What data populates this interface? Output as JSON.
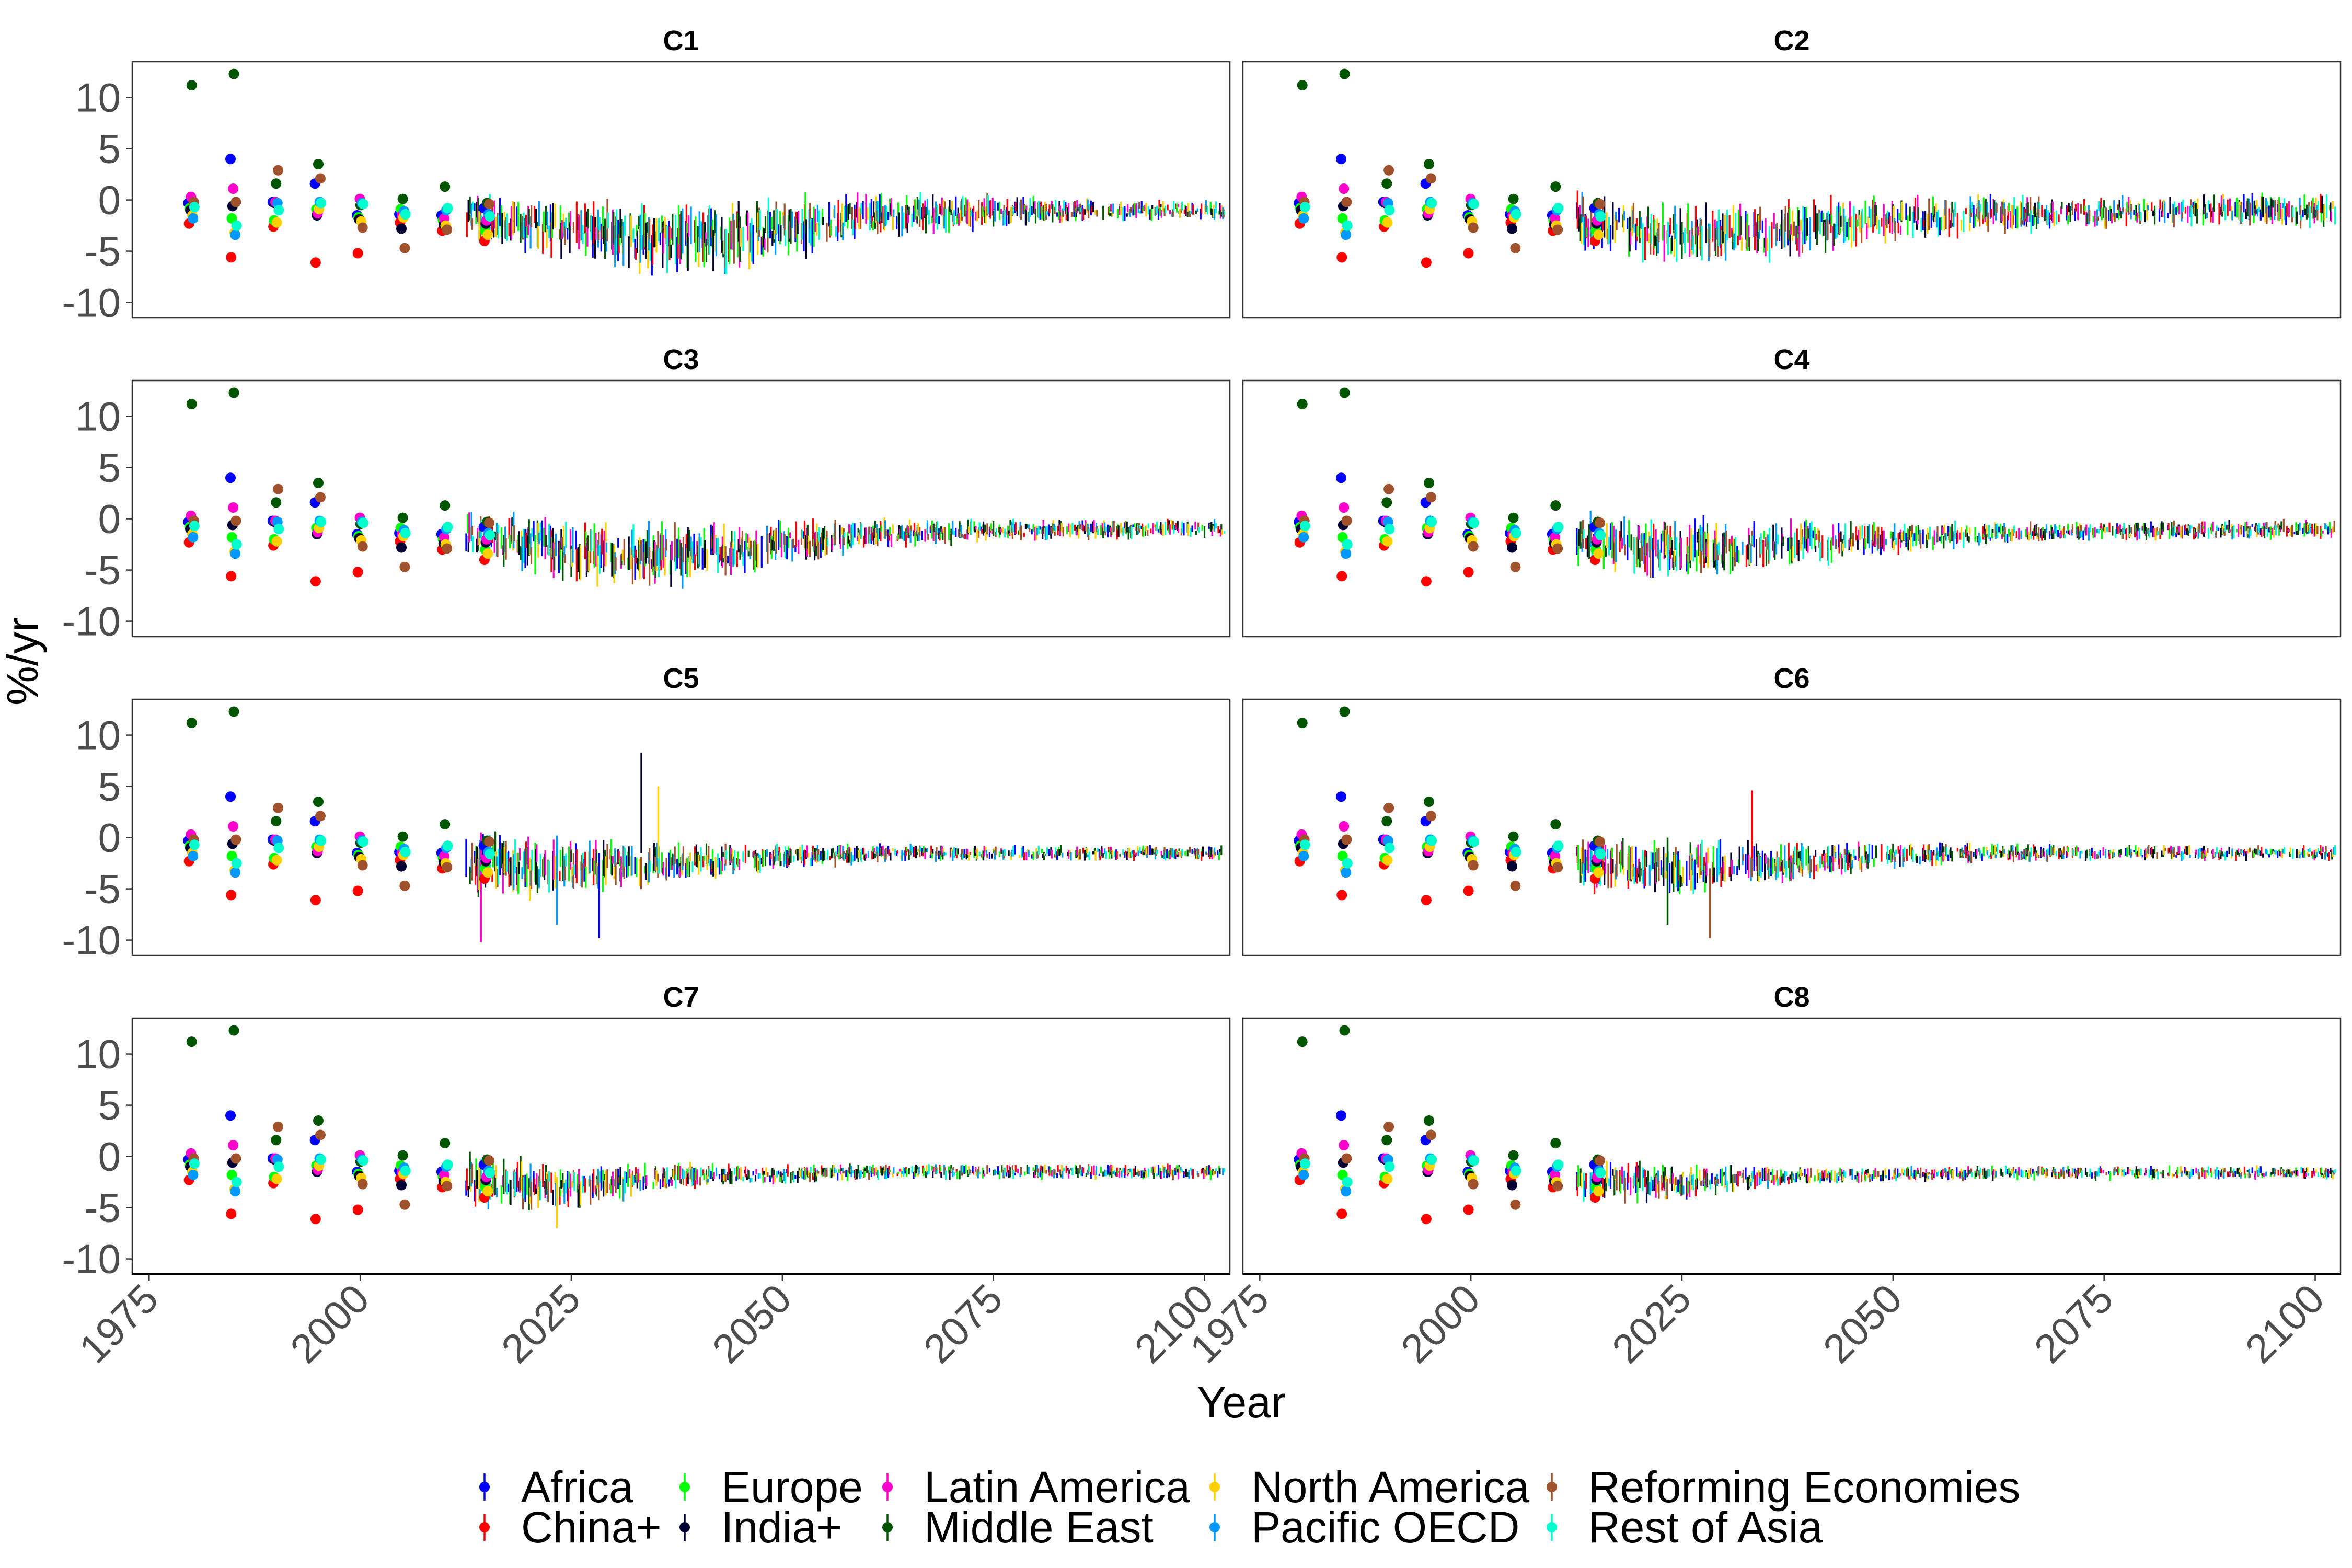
{
  "chart_data": {
    "type": "scatter",
    "xlabel": "Year",
    "ylabel": "%/yr",
    "xlim": [
      1973,
      2103
    ],
    "ylim": [
      -11.5,
      13.5
    ],
    "x_ticks": [
      "1975",
      "2000",
      "2025",
      "2050",
      "2075",
      "2100"
    ],
    "x_tick_values": [
      1975,
      2000,
      2025,
      2050,
      2075,
      2100
    ],
    "y_ticks": [
      "10",
      "5",
      "0",
      "-5",
      "-10"
    ],
    "y_tick_values": [
      10,
      5,
      0,
      -5,
      -10
    ],
    "grid": false,
    "legend_position": "bottom",
    "series": [
      {
        "name": "Africa",
        "color": "#0000ff"
      },
      {
        "name": "China+",
        "color": "#ff0000"
      },
      {
        "name": "Europe",
        "color": "#00ff00"
      },
      {
        "name": "India+",
        "color": "#000033"
      },
      {
        "name": "Latin America",
        "color": "#ff00cc"
      },
      {
        "name": "Middle East",
        "color": "#005500"
      },
      {
        "name": "North America",
        "color": "#ffd000"
      },
      {
        "name": "Pacific OECD",
        "color": "#0099ff"
      },
      {
        "name": "Reforming Economies",
        "color": "#a0522d"
      },
      {
        "name": "Rest of Asia",
        "color": "#00ffcc"
      }
    ],
    "historical_years": [
      1980,
      1985,
      1990,
      1995,
      2000,
      2005,
      2010,
      2015
    ],
    "historical_values": [
      [
        -0.3,
        4.0,
        -0.2,
        1.6,
        -1.5,
        -1.4,
        -1.5,
        -0.8
      ],
      [
        -2.3,
        -5.6,
        -2.6,
        -6.1,
        -5.2,
        -2.2,
        -3.0,
        -4.0
      ],
      [
        -0.8,
        -1.8,
        -2.0,
        -0.9,
        -1.7,
        -0.9,
        -2.0,
        -3.0
      ],
      [
        -1.0,
        -0.6,
        -0.3,
        -1.5,
        -1.9,
        -2.8,
        -2.4,
        -2.3
      ],
      [
        0.3,
        1.1,
        -0.2,
        -1.3,
        0.1,
        -1.5,
        -1.8,
        -2.0
      ],
      [
        11.2,
        12.3,
        1.6,
        3.5,
        -0.5,
        0.1,
        1.3,
        -0.3
      ],
      [
        -1.5,
        -3.2,
        -2.2,
        -0.9,
        -2.1,
        -1.7,
        -2.5,
        -3.4
      ],
      [
        -1.8,
        -3.4,
        -0.3,
        -0.2,
        -0.3,
        -1.1,
        -1.0,
        -1.4
      ],
      [
        -0.2,
        -0.2,
        2.9,
        2.1,
        -2.7,
        -4.7,
        -2.9,
        -0.4
      ],
      [
        -0.7,
        -2.5,
        -1.0,
        -0.3,
        -0.4,
        -1.4,
        -0.8,
        -1.6
      ]
    ],
    "projection_start_year": 2013,
    "projection_end_year": 2102,
    "panels": [
      {
        "title": "C1",
        "range_profile": [
          0.55,
          0.75,
          1.0,
          0.85,
          0.6,
          0.45,
          0.3,
          0.25
        ],
        "center_profile": [
          -1.5,
          -3.0,
          -4.0,
          -3.0,
          -1.5,
          -1.2,
          -1.0,
          -1.0
        ],
        "spike_years": [],
        "spike_top": [],
        "spike_bottom": []
      },
      {
        "title": "C2",
        "range_profile": [
          0.8,
          0.75,
          0.8,
          0.65,
          0.5,
          0.4,
          0.4,
          0.45
        ],
        "center_profile": [
          -2.0,
          -3.5,
          -3.0,
          -2.0,
          -1.5,
          -1.2,
          -1.0,
          -1.0
        ],
        "spike_years": [],
        "spike_top": [],
        "spike_bottom": []
      },
      {
        "title": "C3",
        "range_profile": [
          0.6,
          0.85,
          0.8,
          0.6,
          0.4,
          0.3,
          0.25,
          0.25
        ],
        "center_profile": [
          -1.5,
          -3.0,
          -3.5,
          -2.5,
          -1.5,
          -1.2,
          -1.0,
          -1.0
        ],
        "spike_years": [],
        "spike_top": [],
        "spike_bottom": []
      },
      {
        "title": "C4",
        "range_profile": [
          0.7,
          0.8,
          0.6,
          0.45,
          0.3,
          0.25,
          0.25,
          0.25
        ],
        "center_profile": [
          -2.0,
          -3.0,
          -2.5,
          -2.0,
          -1.5,
          -1.2,
          -1.2,
          -1.0
        ],
        "spike_years": [],
        "spike_top": [],
        "spike_bottom": []
      },
      {
        "title": "C5",
        "range_profile": [
          0.8,
          0.8,
          0.5,
          0.35,
          0.25,
          0.2,
          0.2,
          0.2
        ],
        "center_profile": [
          -2.5,
          -3.0,
          -2.5,
          -2.0,
          -1.5,
          -1.5,
          -1.5,
          -1.5
        ],
        "spike_years": [
          2014,
          2023,
          2028,
          2033,
          2035
        ],
        "spike_top": [
          0.5,
          0.2,
          -1.5,
          8.3,
          5.0
        ],
        "spike_bottom": [
          -10.2,
          -8.5,
          -9.8,
          -1.5,
          -2.0
        ]
      },
      {
        "title": "C6",
        "range_profile": [
          0.7,
          0.75,
          0.5,
          0.35,
          0.25,
          0.2,
          0.2,
          0.2
        ],
        "center_profile": [
          -2.5,
          -3.0,
          -2.5,
          -1.8,
          -1.5,
          -1.5,
          -1.5,
          -1.5
        ],
        "spike_years": [
          2023,
          2028,
          2033
        ],
        "spike_top": [
          0.0,
          -3.0,
          4.6
        ],
        "spike_bottom": [
          -8.5,
          -9.8,
          -2.0
        ]
      },
      {
        "title": "C7",
        "range_profile": [
          0.7,
          0.6,
          0.35,
          0.25,
          0.2,
          0.2,
          0.2,
          0.2
        ],
        "center_profile": [
          -2.5,
          -3.0,
          -2.0,
          -1.8,
          -1.5,
          -1.5,
          -1.5,
          -1.5
        ],
        "spike_years": [
          2023
        ],
        "spike_top": [
          -2.0
        ],
        "spike_bottom": [
          -7.0
        ]
      },
      {
        "title": "C8",
        "range_profile": [
          0.6,
          0.45,
          0.25,
          0.2,
          0.18,
          0.18,
          0.18,
          0.18
        ],
        "center_profile": [
          -2.5,
          -2.5,
          -2.0,
          -1.8,
          -1.6,
          -1.6,
          -1.6,
          -1.6
        ],
        "spike_years": [],
        "spike_top": [],
        "spike_bottom": []
      }
    ]
  }
}
